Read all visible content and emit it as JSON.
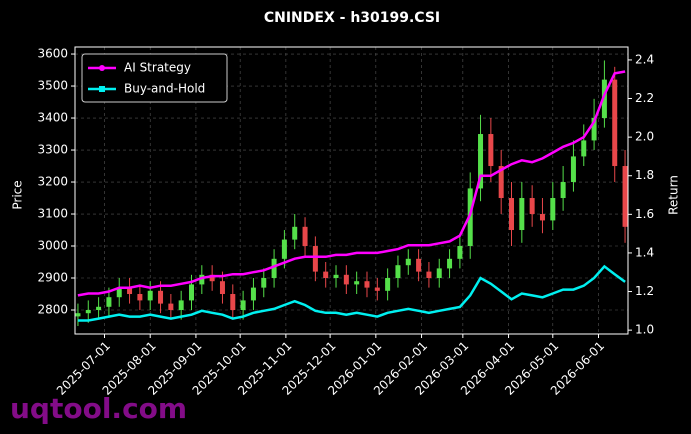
{
  "chart_data": {
    "type": "candlestick",
    "title": "CNINDEX - h30199.CSI",
    "ylabel": "Price",
    "y2label": "Return",
    "watermark": "uqtool.com",
    "x": [
      "2025-06-13",
      "2025-06-20",
      "2025-06-27",
      "2025-07-04",
      "2025-07-11",
      "2025-07-18",
      "2025-07-25",
      "2025-08-01",
      "2025-08-08",
      "2025-08-15",
      "2025-08-22",
      "2025-08-29",
      "2025-09-05",
      "2025-09-12",
      "2025-09-19",
      "2025-09-26",
      "2025-10-03",
      "2025-10-10",
      "2025-10-17",
      "2025-10-24",
      "2025-10-31",
      "2025-11-07",
      "2025-11-14",
      "2025-11-21",
      "2025-11-28",
      "2025-12-05",
      "2025-12-12",
      "2025-12-19",
      "2025-12-26",
      "2026-01-02",
      "2026-01-09",
      "2026-01-16",
      "2026-01-23",
      "2026-01-30",
      "2026-02-06",
      "2026-02-13",
      "2026-02-20",
      "2026-02-27",
      "2026-03-06",
      "2026-03-13",
      "2026-03-20",
      "2026-03-27",
      "2026-04-03",
      "2026-04-10",
      "2026-04-17",
      "2026-04-24",
      "2026-05-01",
      "2026-05-08",
      "2026-05-15",
      "2026-05-22",
      "2026-05-29",
      "2026-06-05",
      "2026-06-12",
      "2026-06-19"
    ],
    "open": [
      2780,
      2790,
      2800,
      2810,
      2840,
      2870,
      2850,
      2830,
      2860,
      2820,
      2800,
      2830,
      2880,
      2910,
      2890,
      2850,
      2800,
      2830,
      2870,
      2900,
      2960,
      3020,
      3060,
      3000,
      2920,
      2900,
      2910,
      2880,
      2890,
      2870,
      2860,
      2900,
      2940,
      2960,
      2920,
      2900,
      2930,
      2960,
      3000,
      3180,
      3350,
      3250,
      3150,
      3050,
      3150,
      3100,
      3080,
      3150,
      3200,
      3280,
      3330,
      3400,
      3520,
      3250
    ],
    "high": [
      2820,
      2830,
      2840,
      2870,
      2900,
      2900,
      2880,
      2890,
      2890,
      2850,
      2860,
      2910,
      2940,
      2940,
      2920,
      2880,
      2860,
      2900,
      2930,
      2990,
      3050,
      3100,
      3090,
      3030,
      2950,
      2940,
      2940,
      2920,
      2920,
      2900,
      2930,
      2970,
      2990,
      2990,
      2950,
      2960,
      2990,
      3030,
      3230,
      3410,
      3400,
      3300,
      3200,
      3200,
      3190,
      3150,
      3200,
      3250,
      3330,
      3380,
      3460,
      3580,
      3560,
      3300
    ],
    "low": [
      2750,
      2760,
      2770,
      2780,
      2810,
      2820,
      2800,
      2800,
      2790,
      2770,
      2770,
      2800,
      2850,
      2860,
      2820,
      2770,
      2770,
      2800,
      2840,
      2870,
      2930,
      2990,
      2970,
      2890,
      2870,
      2870,
      2850,
      2850,
      2840,
      2830,
      2830,
      2870,
      2910,
      2890,
      2870,
      2870,
      2900,
      2930,
      2960,
      3140,
      3200,
      3100,
      3000,
      3010,
      3060,
      3040,
      3050,
      3110,
      3170,
      3250,
      3300,
      3370,
      3200,
      3010
    ],
    "close": [
      2790,
      2800,
      2810,
      2840,
      2870,
      2850,
      2830,
      2860,
      2820,
      2800,
      2830,
      2880,
      2910,
      2890,
      2850,
      2800,
      2830,
      2870,
      2900,
      2960,
      3020,
      3060,
      3000,
      2920,
      2900,
      2910,
      2880,
      2890,
      2870,
      2860,
      2900,
      2940,
      2960,
      2920,
      2900,
      2930,
      2960,
      3000,
      3180,
      3350,
      3250,
      3150,
      3050,
      3150,
      3100,
      3080,
      3150,
      3200,
      3280,
      3330,
      3400,
      3520,
      3250,
      3060
    ],
    "up_color": "#55e04a",
    "down_color": "#e8474a",
    "series": [
      {
        "name": "AI Strategy",
        "color": "#ff00ff",
        "axis": "y2",
        "marker": "circle",
        "values": [
          1.18,
          1.19,
          1.19,
          1.2,
          1.22,
          1.22,
          1.23,
          1.22,
          1.23,
          1.23,
          1.24,
          1.25,
          1.27,
          1.28,
          1.28,
          1.29,
          1.29,
          1.3,
          1.31,
          1.33,
          1.35,
          1.37,
          1.38,
          1.38,
          1.38,
          1.39,
          1.39,
          1.4,
          1.4,
          1.4,
          1.41,
          1.42,
          1.44,
          1.44,
          1.44,
          1.45,
          1.46,
          1.49,
          1.6,
          1.8,
          1.8,
          1.83,
          1.86,
          1.88,
          1.87,
          1.89,
          1.92,
          1.95,
          1.97,
          2.0,
          2.08,
          2.22,
          2.33,
          2.34
        ]
      },
      {
        "name": "Buy-and-Hold",
        "color": "#00f0f0",
        "axis": "y2",
        "marker": "square",
        "values": [
          1.05,
          1.05,
          1.06,
          1.07,
          1.08,
          1.07,
          1.07,
          1.08,
          1.07,
          1.06,
          1.07,
          1.08,
          1.1,
          1.09,
          1.08,
          1.06,
          1.07,
          1.09,
          1.1,
          1.11,
          1.13,
          1.15,
          1.13,
          1.1,
          1.09,
          1.09,
          1.08,
          1.09,
          1.08,
          1.07,
          1.09,
          1.1,
          1.11,
          1.1,
          1.09,
          1.1,
          1.11,
          1.12,
          1.18,
          1.27,
          1.24,
          1.2,
          1.16,
          1.19,
          1.18,
          1.17,
          1.19,
          1.21,
          1.21,
          1.23,
          1.27,
          1.33,
          1.29,
          1.25
        ]
      }
    ],
    "xlim": [
      "2025-06-11",
      "2026-06-21"
    ],
    "xticks": [
      "2025-07-01",
      "2025-08-01",
      "2025-09-01",
      "2025-10-01",
      "2025-11-01",
      "2025-12-01",
      "2026-01-01",
      "2026-02-01",
      "2026-03-01",
      "2026-04-01",
      "2026-05-01",
      "2026-06-01"
    ],
    "ylim": [
      2725,
      3622
    ],
    "yticks": [
      2800,
      2900,
      3000,
      3100,
      3200,
      3300,
      3400,
      3500,
      3600
    ],
    "y2lim": [
      0.98,
      2.467
    ],
    "y2ticks": [
      {
        "value": 1,
        "label": "1.0"
      },
      1.2,
      1.4,
      1.6,
      1.8,
      {
        "value": 2,
        "label": "2.0"
      },
      2.2,
      2.4
    ],
    "grid": true,
    "legend": "upper left"
  }
}
